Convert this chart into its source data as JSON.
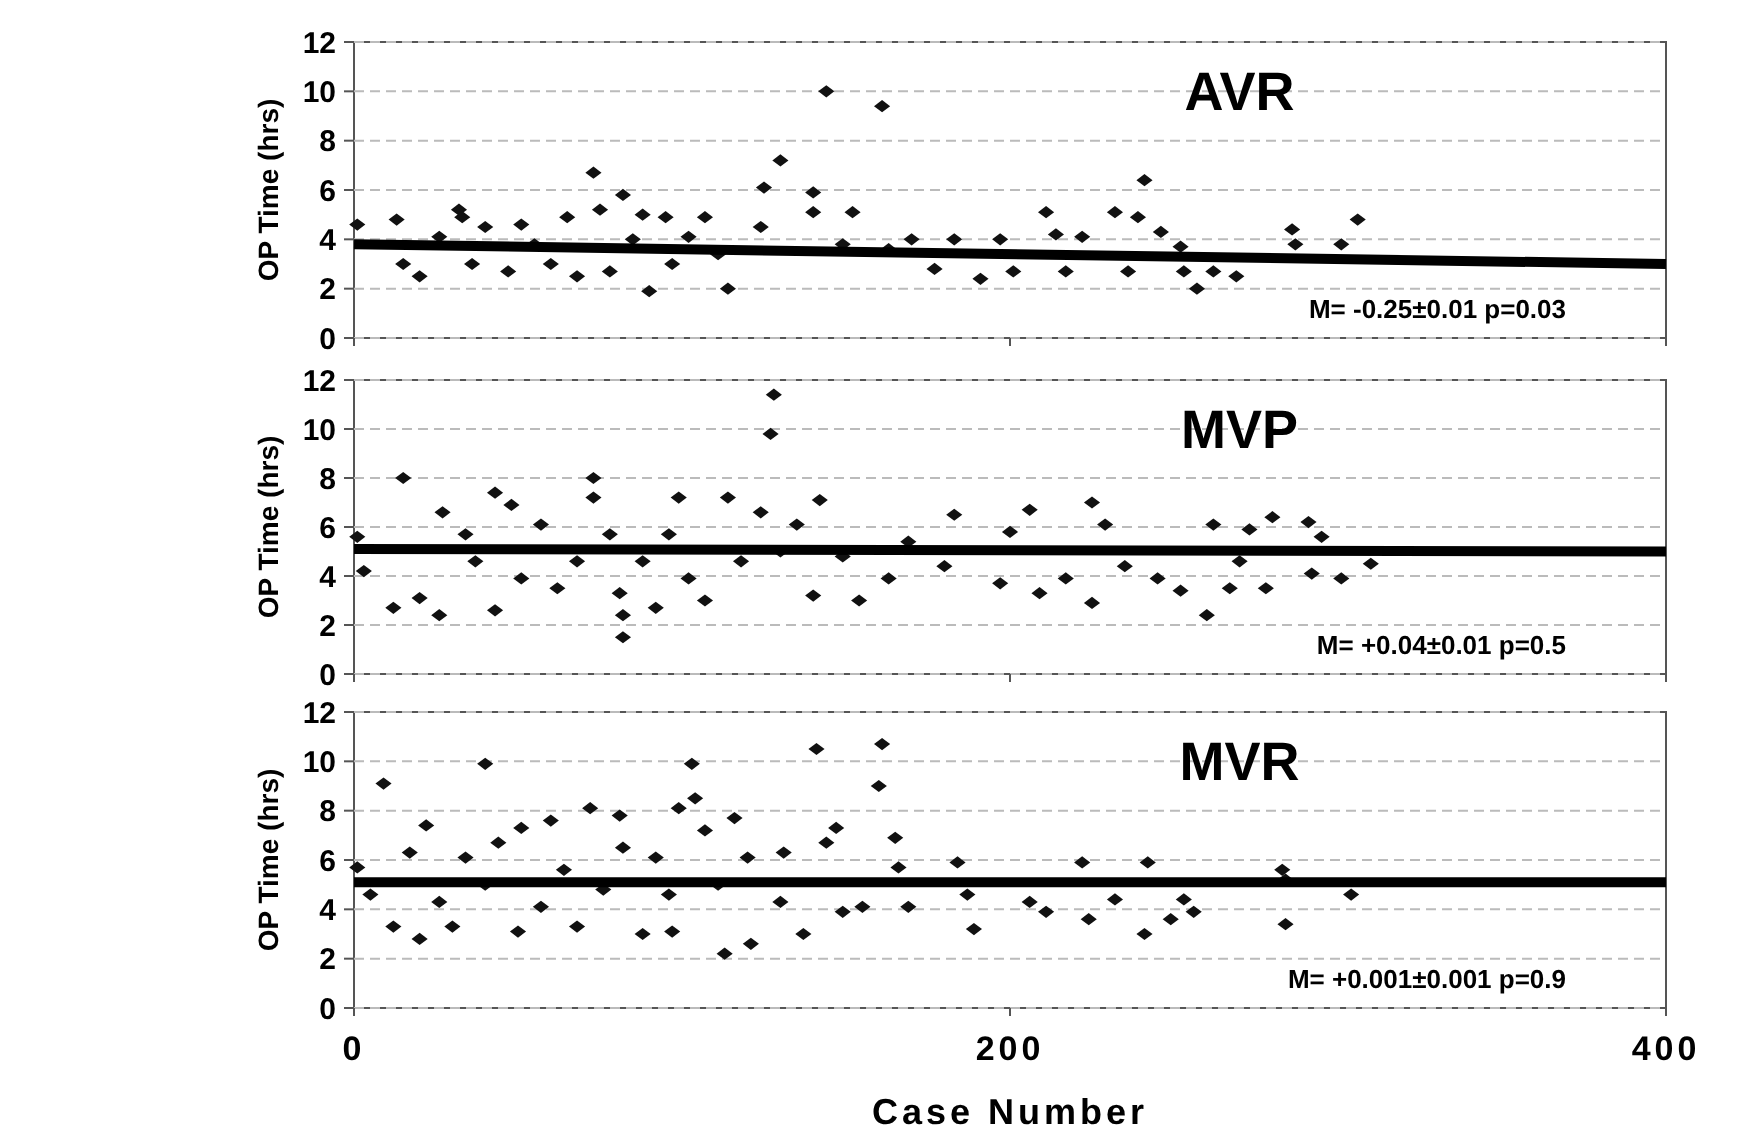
{
  "chart_data": [
    {
      "type": "scatter",
      "title": "AVR",
      "ylabel": "OP Time (hrs)",
      "xlim": [
        0,
        400
      ],
      "xticks": [
        0,
        200,
        400
      ],
      "ylim": [
        0,
        12
      ],
      "yticks": [
        0,
        2,
        4,
        6,
        8,
        10,
        12
      ],
      "grid": "y",
      "tick_labels": "y",
      "marker": "diamond",
      "annotations": [
        "M= -0.25±0.01  p=0.03"
      ],
      "series": [
        {
          "color": "#111111",
          "x": [
            1,
            13,
            15,
            20,
            26,
            32,
            33,
            36,
            40,
            47,
            51,
            55,
            60,
            65,
            68,
            73,
            75,
            78,
            82,
            85,
            88,
            90,
            95,
            97,
            102,
            107,
            111,
            114,
            124,
            125,
            130,
            140,
            140,
            144,
            149,
            152,
            161,
            163,
            170,
            177,
            183,
            191,
            197,
            201,
            211,
            214,
            217,
            222,
            232,
            236,
            239,
            241,
            246,
            252,
            253,
            257,
            262,
            269,
            286,
            287,
            301,
            306
          ],
          "values": [
            4.6,
            4.8,
            3.0,
            2.5,
            4.1,
            5.2,
            4.9,
            3.0,
            4.5,
            2.7,
            4.6,
            3.8,
            3.0,
            4.9,
            2.5,
            6.7,
            5.2,
            2.7,
            5.8,
            4.0,
            5.0,
            1.9,
            4.9,
            3.0,
            4.1,
            4.9,
            3.4,
            2.0,
            4.5,
            6.1,
            7.2,
            5.9,
            5.1,
            10.0,
            3.8,
            5.1,
            9.4,
            3.6,
            4.0,
            2.8,
            4.0,
            2.4,
            4.0,
            2.7,
            5.1,
            4.2,
            2.7,
            4.1,
            5.1,
            2.7,
            4.9,
            6.4,
            4.3,
            3.7,
            2.7,
            2.0,
            2.7,
            2.5,
            4.4,
            3.8,
            3.8,
            4.8
          ]
        },
        {
          "type": "line",
          "color": "#000000",
          "marker": "none",
          "x": [
            0,
            400
          ],
          "values": [
            3.8,
            3.0
          ]
        }
      ]
    },
    {
      "type": "scatter",
      "title": "MVP",
      "ylabel": "OP Time (hrs)",
      "xlim": [
        0,
        400
      ],
      "xticks": [
        0,
        200,
        400
      ],
      "ylim": [
        0,
        12
      ],
      "yticks": [
        0,
        2,
        4,
        6,
        8,
        10,
        12
      ],
      "grid": "y",
      "tick_labels": "y",
      "marker": "diamond",
      "annotations": [
        "M= +0.04±0.01  p=0.5"
      ],
      "series": [
        {
          "color": "#111111",
          "x": [
            1,
            3,
            12,
            15,
            20,
            26,
            27,
            34,
            37,
            43,
            43,
            48,
            51,
            57,
            62,
            68,
            73,
            73,
            78,
            81,
            82,
            82,
            88,
            92,
            96,
            99,
            102,
            107,
            114,
            118,
            124,
            127,
            128,
            130,
            135,
            140,
            142,
            149,
            154,
            163,
            169,
            180,
            183,
            197,
            200,
            206,
            209,
            217,
            225,
            225,
            229,
            235,
            245,
            252,
            260,
            262,
            267,
            270,
            273,
            278,
            280,
            291,
            292,
            295,
            301,
            310
          ],
          "values": [
            5.6,
            4.2,
            2.7,
            8.0,
            3.1,
            2.4,
            6.6,
            5.7,
            4.6,
            7.4,
            2.6,
            6.9,
            3.9,
            6.1,
            3.5,
            4.6,
            8.0,
            7.2,
            5.7,
            3.3,
            2.4,
            1.5,
            4.6,
            2.7,
            5.7,
            7.2,
            3.9,
            3.0,
            7.2,
            4.6,
            6.6,
            9.8,
            11.4,
            5.0,
            6.1,
            3.2,
            7.1,
            4.8,
            3.0,
            3.9,
            5.4,
            4.4,
            6.5,
            3.7,
            5.8,
            6.7,
            3.3,
            3.9,
            2.9,
            7.0,
            6.1,
            4.4,
            3.9,
            3.4,
            2.4,
            6.1,
            3.5,
            4.6,
            5.9,
            3.5,
            6.4,
            6.2,
            4.1,
            5.6,
            3.9,
            4.5
          ]
        },
        {
          "type": "line",
          "color": "#000000",
          "marker": "none",
          "x": [
            0,
            400
          ],
          "values": [
            5.1,
            5.0
          ]
        }
      ]
    },
    {
      "type": "scatter",
      "title": "MVR",
      "ylabel": "OP Time (hrs)",
      "xlabel": "Case Number",
      "xlim": [
        0,
        400
      ],
      "xticks": [
        0,
        200,
        400
      ],
      "ylim": [
        0,
        12
      ],
      "yticks": [
        0,
        2,
        4,
        6,
        8,
        10,
        12
      ],
      "grid": "y",
      "marker": "diamond",
      "annotations": [
        "M= +0.001±0.001  p=0.9"
      ],
      "series": [
        {
          "color": "#111111",
          "x": [
            1,
            5,
            9,
            12,
            17,
            20,
            22,
            26,
            30,
            34,
            40,
            40,
            44,
            50,
            51,
            57,
            60,
            64,
            68,
            72,
            76,
            81,
            82,
            88,
            92,
            96,
            97,
            99,
            103,
            104,
            107,
            111,
            113,
            116,
            120,
            121,
            130,
            131,
            137,
            141,
            144,
            147,
            149,
            155,
            160,
            161,
            165,
            166,
            169,
            184,
            187,
            189,
            206,
            211,
            222,
            224,
            232,
            241,
            242,
            249,
            253,
            256,
            283,
            284,
            284,
            304
          ],
          "values": [
            5.7,
            4.6,
            9.1,
            3.3,
            6.3,
            2.8,
            7.4,
            4.3,
            3.3,
            6.1,
            9.9,
            5.0,
            6.7,
            3.1,
            7.3,
            4.1,
            7.6,
            5.6,
            3.3,
            8.1,
            4.8,
            7.8,
            6.5,
            3.0,
            6.1,
            4.6,
            3.1,
            8.1,
            9.9,
            8.5,
            7.2,
            5.0,
            2.2,
            7.7,
            6.1,
            2.6,
            4.3,
            6.3,
            3.0,
            10.5,
            6.7,
            7.3,
            3.9,
            4.1,
            9.0,
            10.7,
            6.9,
            5.7,
            4.1,
            5.9,
            4.6,
            3.2,
            4.3,
            3.9,
            5.9,
            3.6,
            4.4,
            3.0,
            5.9,
            3.6,
            4.4,
            3.9,
            5.6,
            5.2,
            3.4,
            4.6
          ]
        },
        {
          "type": "line",
          "color": "#000000",
          "marker": "none",
          "x": [
            0,
            400
          ],
          "values": [
            5.1,
            5.1
          ]
        }
      ]
    }
  ]
}
